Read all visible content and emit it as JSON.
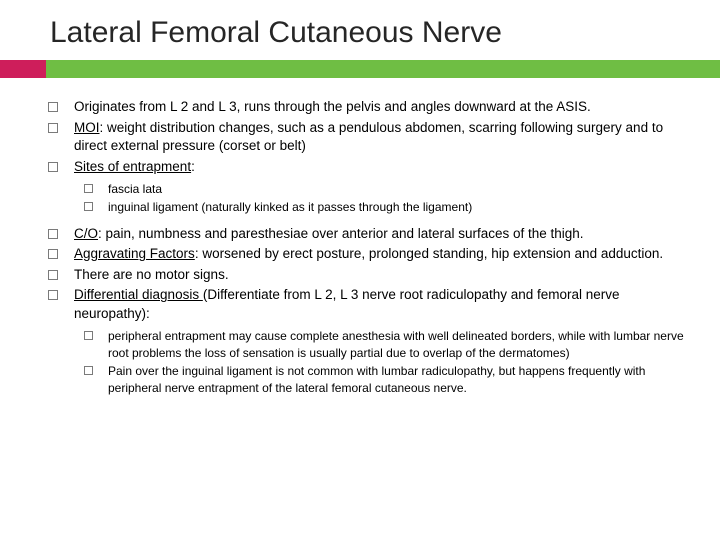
{
  "title": "Lateral Femoral Cutaneous Nerve",
  "colors": {
    "accent_green": "#6fbe44",
    "accent_pink": "#ce1e5b",
    "title_text": "#262626",
    "body_text": "#000000",
    "bullet_border": "#7a7a7a",
    "background": "#ffffff"
  },
  "typography": {
    "title_fontsize": 30,
    "body_fontsize": 13.5,
    "sub_fontsize": 12,
    "font_family": "Arial"
  },
  "bullets": [
    {
      "text": "Originates from L 2 and L 3, runs through the pelvis and angles downward at the ASIS."
    },
    {
      "label": "MOI",
      "text": ": weight distribution changes, such as a pendulous abdomen, scarring following surgery and to direct external pressure (corset or belt)"
    },
    {
      "label": "Sites of entrapment",
      "text": ":",
      "children": [
        {
          "text": "fascia lata"
        },
        {
          "text": "inguinal ligament (naturally kinked as it passes through the ligament)"
        }
      ]
    },
    {
      "label": "C/O",
      "text": ": pain, numbness and paresthesiae over anterior and lateral surfaces of the thigh."
    },
    {
      "label": "Aggravating Factors",
      "text": ": worsened by erect posture, prolonged standing, hip extension and adduction."
    },
    {
      "text": "There are no motor signs."
    },
    {
      "label": "Differential diagnosis ",
      "text": "(Differentiate from L 2, L 3 nerve root radiculopathy and femoral nerve neuropathy):",
      "children": [
        {
          "text": "peripheral entrapment may cause complete anesthesia with well delineated borders, while with lumbar nerve root problems the loss of sensation is usually partial due to overlap of the dermatomes)"
        },
        {
          "text": "Pain over the inguinal ligament is not common with lumbar radiculopathy, but happens frequently with peripheral nerve entrapment of the lateral femoral cutaneous nerve."
        }
      ]
    }
  ]
}
